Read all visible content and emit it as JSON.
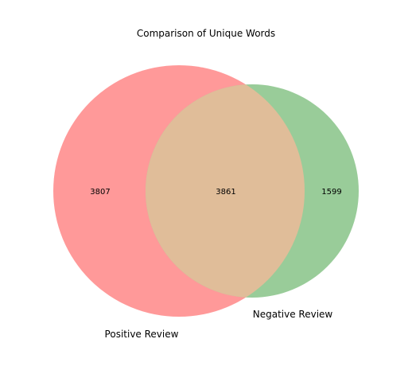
{
  "title": "Comparison of Unique Words",
  "chart_data": {
    "type": "venn",
    "title": "Comparison of Unique Words",
    "sets": [
      {
        "label": "Positive Review",
        "only_count": 3807,
        "color": "#ff9999"
      },
      {
        "label": "Negative Review",
        "only_count": 1599,
        "color": "#99cc99"
      }
    ],
    "intersection": {
      "count": 3861,
      "color": "#e0bd99"
    }
  }
}
